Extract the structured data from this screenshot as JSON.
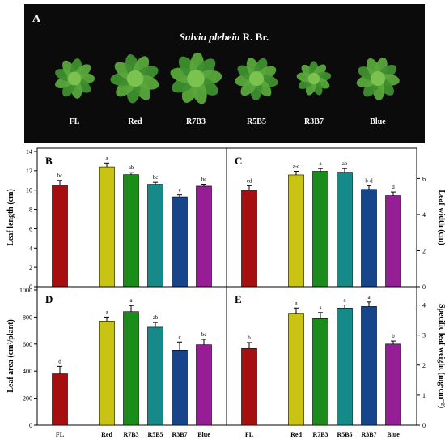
{
  "figure": {
    "panel_a_label": "A",
    "species_italic": "Salvia plebeia",
    "species_author": " R. Br.",
    "treatments": [
      "FL",
      "Red",
      "R7B3",
      "R5B5",
      "R3B7",
      "Blue"
    ],
    "colors": {
      "FL": "#a50f0f",
      "Red": "#c9c414",
      "R7B3": "#1a8c1a",
      "R5B5": "#168a88",
      "R3B7": "#16458c",
      "Blue": "#951e95",
      "photo_bg": "#0b0b0b",
      "leaf": "#3f8f2e"
    }
  },
  "chart_data": [
    {
      "panel": "B",
      "type": "bar",
      "categories": [
        "FL",
        "Red",
        "R7B3",
        "R5B5",
        "R3B7",
        "Blue"
      ],
      "values": [
        10.5,
        12.4,
        11.6,
        10.6,
        9.3,
        10.4
      ],
      "errors": [
        0.5,
        0.4,
        0.2,
        0.2,
        0.2,
        0.2
      ],
      "letters": [
        "bc",
        "a",
        "ab",
        "bc",
        "c",
        "bc"
      ],
      "ylabel": "Leaf length (cm)",
      "ylim": [
        0,
        14
      ],
      "yticks": [
        0,
        2,
        4,
        6,
        8,
        10,
        12,
        14
      ],
      "axis_side": "left"
    },
    {
      "panel": "C",
      "type": "bar",
      "categories": [
        "FL",
        "Red",
        "R7B3",
        "R5B5",
        "R3B7",
        "Blue"
      ],
      "values": [
        5.35,
        6.2,
        6.4,
        6.35,
        5.4,
        5.05
      ],
      "errors": [
        0.25,
        0.2,
        0.15,
        0.2,
        0.2,
        0.2
      ],
      "letters": [
        "cd",
        "a-c",
        "a",
        "ab",
        "b-d",
        "d"
      ],
      "ylabel": "Leaf width (cm)",
      "ylim": [
        0,
        7.5
      ],
      "yticks": [
        0,
        2,
        4,
        6
      ],
      "axis_side": "right"
    },
    {
      "panel": "D",
      "type": "bar",
      "categories": [
        "FL",
        "Red",
        "R7B3",
        "R5B5",
        "R3B7",
        "Blue"
      ],
      "values": [
        380,
        770,
        840,
        725,
        555,
        595
      ],
      "errors": [
        55,
        30,
        45,
        35,
        60,
        40
      ],
      "letters": [
        "d",
        "a",
        "a",
        "ab",
        "c",
        "bc"
      ],
      "ylabel": "Leaf area (cm²/plant)",
      "ylim": [
        0,
        1000
      ],
      "yticks": [
        0,
        200,
        400,
        600,
        800,
        1000
      ],
      "axis_side": "left"
    },
    {
      "panel": "E",
      "type": "bar",
      "categories": [
        "FL",
        "Red",
        "R7B3",
        "R5B5",
        "R3B7",
        "Blue"
      ],
      "values": [
        2.55,
        3.7,
        3.55,
        3.9,
        3.95,
        2.7
      ],
      "errors": [
        0.2,
        0.2,
        0.2,
        0.1,
        0.15,
        0.1
      ],
      "letters": [
        "b",
        "a",
        "a",
        "a",
        "a",
        "b"
      ],
      "ylabel": "Specific leaf weight (mg·cm⁻²)",
      "ylim": [
        0,
        4.5
      ],
      "yticks": [
        0,
        1,
        2,
        3,
        4
      ],
      "axis_side": "right"
    }
  ]
}
